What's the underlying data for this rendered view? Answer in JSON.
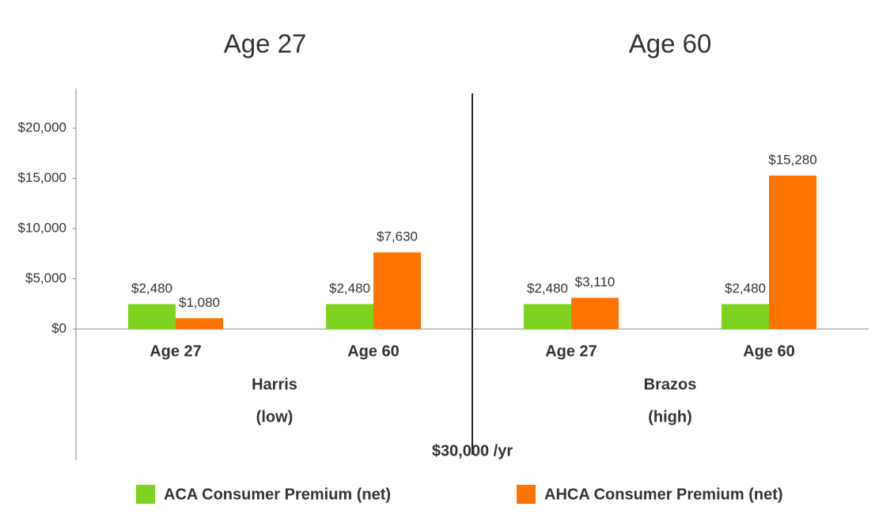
{
  "chart_data": {
    "type": "bar",
    "panel_titles": [
      "Age 27",
      "Age 60"
    ],
    "categories": [
      "Age 27",
      "Age 60",
      "Age 27",
      "Age 60"
    ],
    "groups": [
      {
        "label": "Harris",
        "sublabel": "(low)"
      },
      {
        "label": "Brazos",
        "sublabel": "(high)"
      }
    ],
    "x_label": "$30,000 /yr",
    "series": [
      {
        "name": "ACA Consumer Premium (net)",
        "color": "#7ed321",
        "values": [
          2480,
          2480,
          2480,
          2480
        ],
        "value_labels": [
          "$2,480",
          "$2,480",
          "$2,480",
          "$2,480"
        ]
      },
      {
        "name": "AHCA Consumer Premium (net)",
        "color": "#ff7300",
        "values": [
          1080,
          7630,
          3110,
          15280
        ],
        "value_labels": [
          "$1,080",
          "$7,630",
          "$3,110",
          "$15,280"
        ]
      }
    ],
    "ylim": [
      0,
      24000
    ],
    "yticks": [
      {
        "value": 0,
        "label": "$0"
      },
      {
        "value": 5000,
        "label": "$5,000"
      },
      {
        "value": 10000,
        "label": "$10,000"
      },
      {
        "value": 15000,
        "label": "$15,000"
      },
      {
        "value": 20000,
        "label": "$20,000"
      }
    ],
    "grid": false,
    "legend": "bottom"
  }
}
